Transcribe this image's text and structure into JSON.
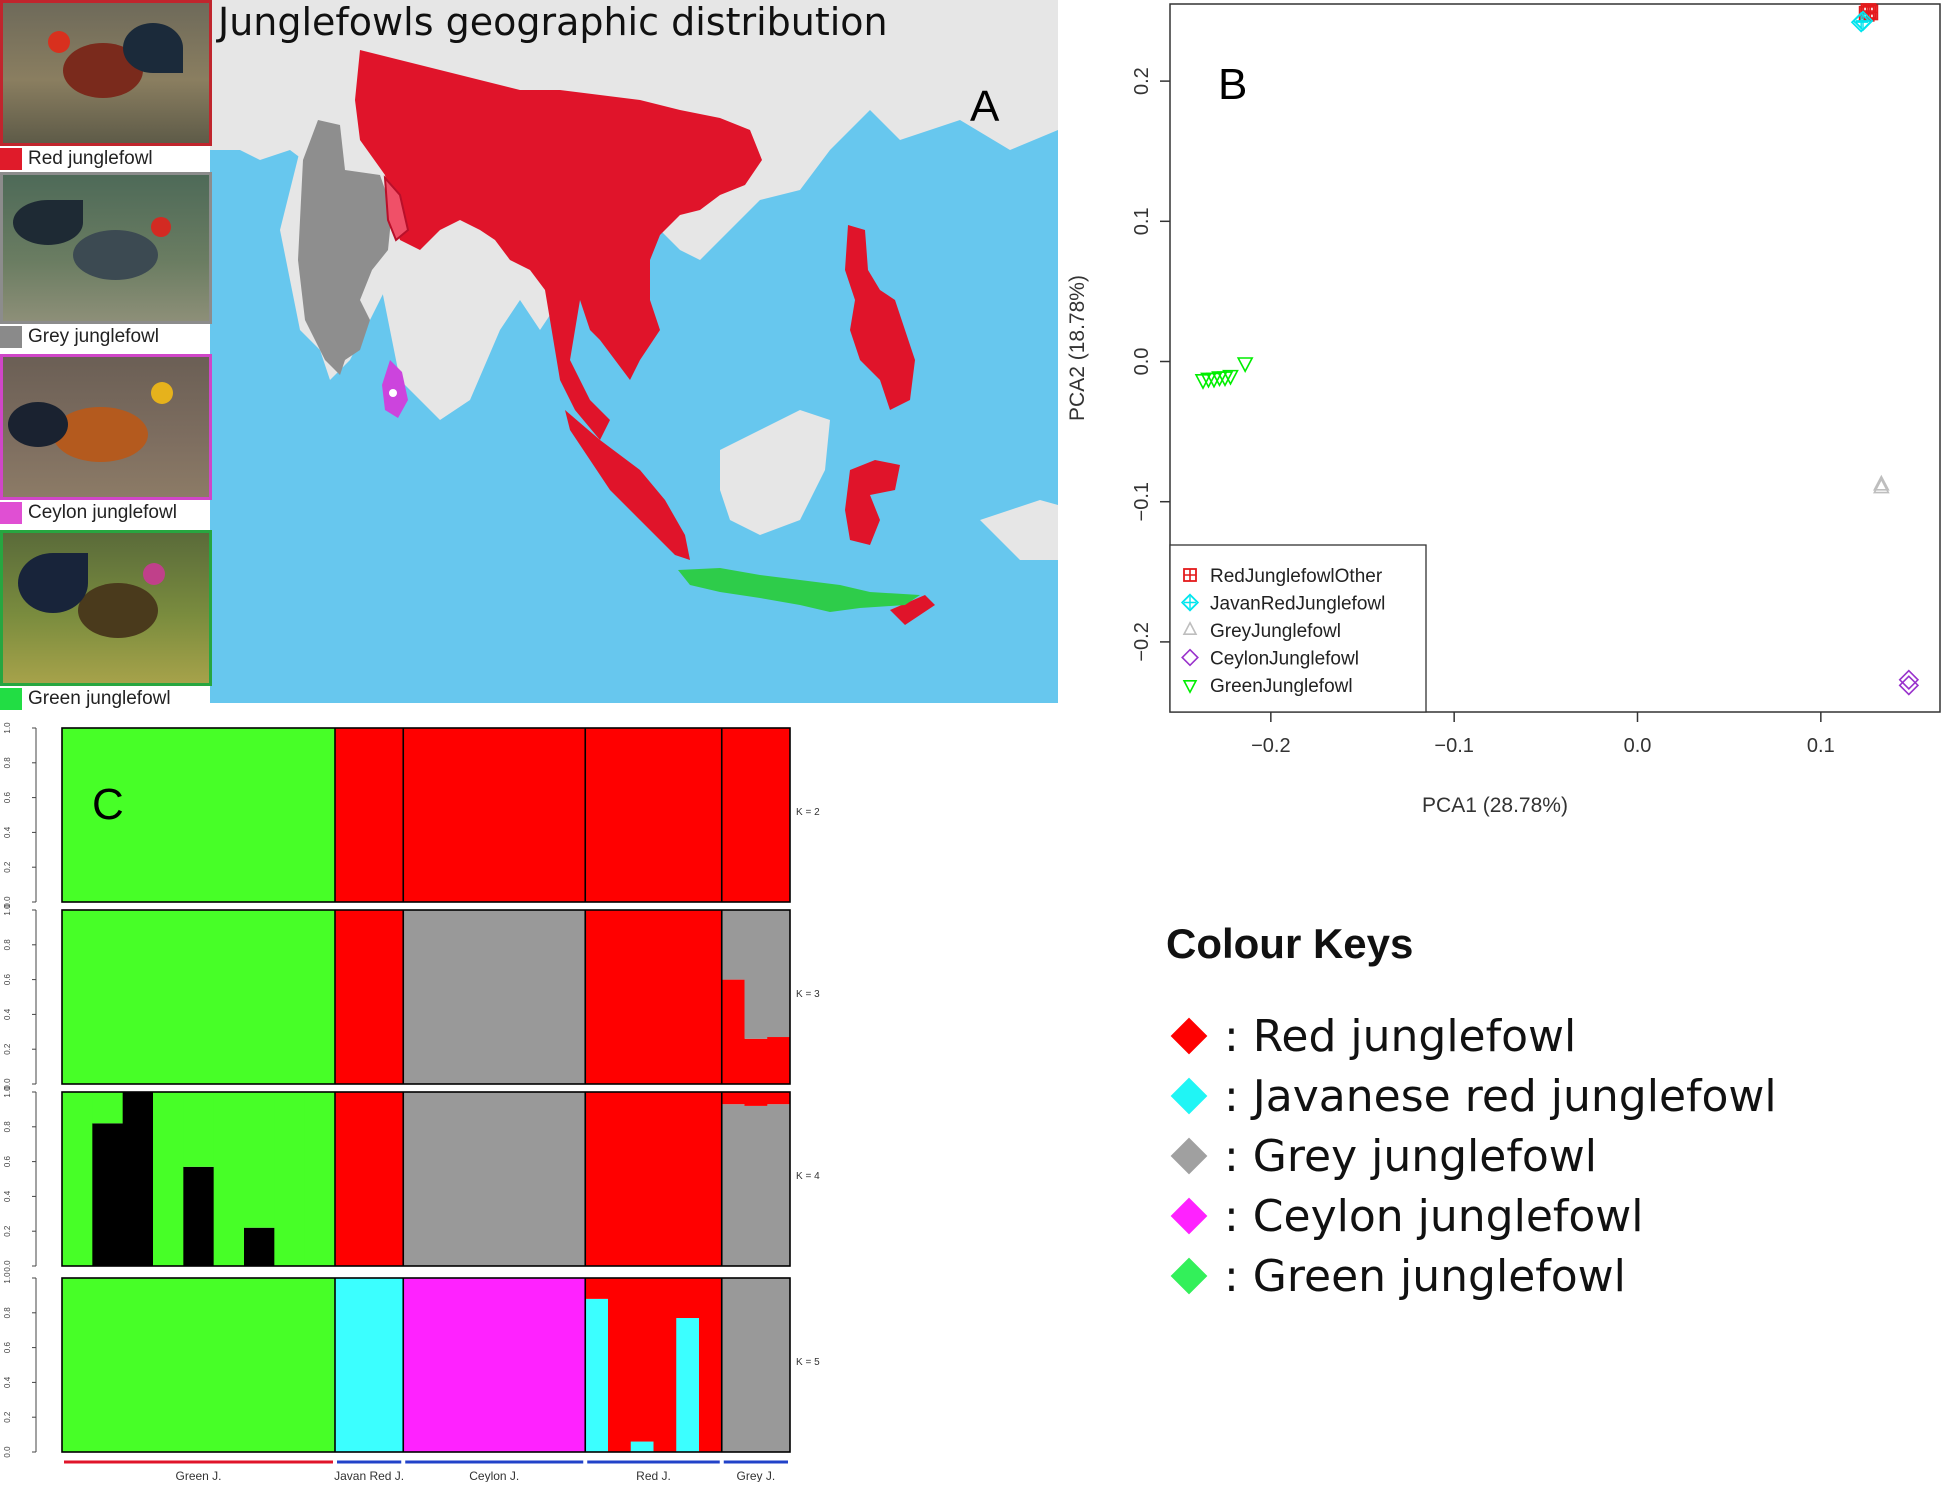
{
  "panel_a": {
    "letter": "A",
    "title": "Junglefowls geographic distribution",
    "birds": [
      {
        "label": "Red junglefowl",
        "color": "#e01b2a",
        "frame": "#c0252d"
      },
      {
        "label": "Grey junglefowl",
        "color": "#8a8a8a",
        "frame": "#8c8c8c"
      },
      {
        "label": "Ceylon junglefowl",
        "color": "#e04fd3",
        "frame": "#d046c8"
      },
      {
        "label": "Green junglefowl",
        "color": "#22dd44",
        "frame": "#27a640"
      }
    ],
    "map_colors": {
      "sea": "#67c7ee",
      "land": "#e8e8e8",
      "red": "#e0142a",
      "grey": "#8e8e8e",
      "ceylon": "#cc44dd",
      "green": "#2ecc4a"
    }
  },
  "panel_b": {
    "letter": "B"
  },
  "panel_c": {
    "letter": "C"
  },
  "chart_data": [
    {
      "type": "scatter",
      "panel": "B",
      "xlabel": "PCA1 (28.78%)",
      "ylabel": "PCA2 (18.78%)",
      "xlim": [
        -0.255,
        0.165
      ],
      "ylim": [
        -0.25,
        0.255
      ],
      "xticks": [
        -0.2,
        -0.1,
        0.0,
        0.1
      ],
      "xtick_labels": [
        "−0.2",
        "−0.1",
        "0.0",
        "0.1"
      ],
      "yticks": [
        -0.2,
        -0.1,
        0.0,
        0.1,
        0.2
      ],
      "ytick_labels": [
        "−0.2",
        "−0.1",
        "0.0",
        "0.1",
        "0.2"
      ],
      "legend_position": "bottom-left",
      "series": [
        {
          "name": "RedJunglefowlOther",
          "color": "#e41a1c",
          "marker": "square-plus",
          "points": [
            [
              0.126,
              0.25
            ],
            [
              0.127,
              0.249
            ],
            [
              0.125,
              0.248
            ]
          ]
        },
        {
          "name": "JavanRedJunglefowl",
          "color": "#00e5ee",
          "marker": "diamond-plus",
          "points": [
            [
              0.122,
              0.242
            ],
            [
              0.123,
              0.243
            ]
          ]
        },
        {
          "name": "GreyJunglefowl",
          "color": "#bebebe",
          "marker": "triangle-up",
          "points": [
            [
              0.133,
              -0.088
            ],
            [
              0.133,
              -0.09
            ]
          ]
        },
        {
          "name": "CeylonJunglefowl",
          "color": "#9932cc",
          "marker": "diamond",
          "points": [
            [
              0.148,
              -0.227
            ],
            [
              0.148,
              -0.231
            ]
          ]
        },
        {
          "name": "GreenJunglefowl",
          "color": "#00ee00",
          "marker": "triangle-down",
          "points": [
            [
              -0.237,
              -0.013
            ],
            [
              -0.234,
              -0.012
            ],
            [
              -0.231,
              -0.012
            ],
            [
              -0.228,
              -0.011
            ],
            [
              -0.225,
              -0.011
            ],
            [
              -0.222,
              -0.01
            ],
            [
              -0.214,
              -0.001
            ]
          ]
        }
      ]
    },
    {
      "type": "bar",
      "subtype": "stacked-admixture",
      "panel": "C",
      "k_labels": [
        "K = 2",
        "K = 3",
        "K = 4",
        "K = 5"
      ],
      "yticks": [
        "0.0",
        "0.2",
        "0.4",
        "0.6",
        "0.8",
        "1.0"
      ],
      "populations": [
        {
          "name": "Green J.",
          "n": 6,
          "underline": "#e0142a"
        },
        {
          "name": "Javan Red J.",
          "n": 1,
          "underline": "#2142c9"
        },
        {
          "name": "Ceylon J.",
          "n": 2,
          "underline": "#2142c9"
        },
        {
          "name": "Red J.",
          "n": 2,
          "underline": "#2142c9"
        },
        {
          "name": "Grey J.",
          "n": 1,
          "underline": "#2142c9"
        }
      ],
      "cluster_colors": {
        "green": "#47ff27",
        "red": "#ff0000",
        "grey": "#999999",
        "black": "#000000",
        "cyan": "#3bffff",
        "magenta": "#ff22ff"
      },
      "k_rows": [
        {
          "k": 2,
          "groups": [
            {
              "w": 6,
              "bars": [
                [
                  [
                    "green",
                    1.0
                  ]
                ]
              ]
            },
            {
              "w": 1.5,
              "bars": [
                [
                  [
                    "red",
                    1.0
                  ]
                ]
              ]
            },
            {
              "w": 4,
              "bars": [
                [
                  [
                    "red",
                    1.0
                  ]
                ]
              ]
            },
            {
              "w": 3,
              "bars": [
                [
                  [
                    "red",
                    1.0
                  ]
                ]
              ]
            },
            {
              "w": 1.5,
              "bars": [
                [
                  [
                    "red",
                    1.0
                  ]
                ]
              ]
            }
          ]
        },
        {
          "k": 3,
          "groups": [
            {
              "w": 6,
              "bars": [
                [
                  [
                    "green",
                    1.0
                  ]
                ]
              ]
            },
            {
              "w": 1.5,
              "bars": [
                [
                  [
                    "red",
                    1.0
                  ]
                ]
              ]
            },
            {
              "w": 4,
              "bars": [
                [
                  [
                    "grey",
                    1.0
                  ]
                ]
              ]
            },
            {
              "w": 3,
              "bars": [
                [
                  [
                    "red",
                    1.0
                  ]
                ]
              ]
            },
            {
              "w": 1.5,
              "bars": [
                [
                  [
                    "red",
                    0.6
                  ],
                  [
                    "grey",
                    0.4
                  ]
                ],
                [
                  [
                    "red",
                    0.26
                  ],
                  [
                    "grey",
                    0.74
                  ]
                ],
                [
                  [
                    "red",
                    0.27
                  ],
                  [
                    "grey",
                    0.73
                  ]
                ]
              ]
            }
          ]
        },
        {
          "k": 4,
          "groups": [
            {
              "w": 6,
              "bars": [
                [
                  [
                    "green",
                    1.0
                  ]
                ],
                [
                  [
                    "black",
                    0.82
                  ],
                  [
                    "green",
                    0.18
                  ]
                ],
                [
                  [
                    "black",
                    1.0
                  ]
                ],
                [
                  [
                    "green",
                    1.0
                  ]
                ],
                [
                  [
                    "black",
                    0.57
                  ],
                  [
                    "green",
                    0.43
                  ]
                ],
                [
                  [
                    "green",
                    1.0
                  ]
                ],
                [
                  [
                    "black",
                    0.22
                  ],
                  [
                    "green",
                    0.78
                  ]
                ],
                [
                  [
                    "green",
                    1.0
                  ]
                ],
                [
                  [
                    "green",
                    1.0
                  ]
                ]
              ]
            },
            {
              "w": 1.5,
              "bars": [
                [
                  [
                    "red",
                    1.0
                  ]
                ]
              ]
            },
            {
              "w": 4,
              "bars": [
                [
                  [
                    "grey",
                    1.0
                  ]
                ]
              ]
            },
            {
              "w": 3,
              "bars": [
                [
                  [
                    "red",
                    1.0
                  ]
                ]
              ]
            },
            {
              "w": 1.5,
              "bars": [
                [
                  [
                    "grey",
                    0.93
                  ],
                  [
                    "red",
                    0.07
                  ]
                ],
                [
                  [
                    "grey",
                    0.92
                  ],
                  [
                    "red",
                    0.08
                  ]
                ],
                [
                  [
                    "grey",
                    0.93
                  ],
                  [
                    "red",
                    0.07
                  ]
                ]
              ]
            }
          ]
        },
        {
          "k": 5,
          "groups": [
            {
              "w": 6,
              "bars": [
                [
                  [
                    "green",
                    1.0
                  ]
                ]
              ]
            },
            {
              "w": 1.5,
              "bars": [
                [
                  [
                    "cyan",
                    1.0
                  ]
                ]
              ]
            },
            {
              "w": 4,
              "bars": [
                [
                  [
                    "magenta",
                    1.0
                  ]
                ]
              ]
            },
            {
              "w": 3,
              "bars": [
                [
                  [
                    "cyan",
                    0.88
                  ],
                  [
                    "red",
                    0.12
                  ]
                ],
                [
                  [
                    "red",
                    1.0
                  ]
                ],
                [
                  [
                    "cyan",
                    0.06
                  ],
                  [
                    "red",
                    0.94
                  ]
                ],
                [
                  [
                    "red",
                    1.0
                  ]
                ],
                [
                  [
                    "cyan",
                    0.77
                  ],
                  [
                    "red",
                    0.23
                  ]
                ],
                [
                  [
                    "red",
                    1.0
                  ]
                ]
              ]
            },
            {
              "w": 1.5,
              "bars": [
                [
                  [
                    "grey",
                    1.0
                  ]
                ]
              ]
            }
          ]
        }
      ]
    }
  ],
  "colour_keys": {
    "title": "Colour Keys",
    "items": [
      {
        "label": ": Red junglefowl",
        "color": "#ff0000"
      },
      {
        "label": ": Javanese red junglefowl",
        "color": "#20f5f5"
      },
      {
        "label": ": Grey junglefowl",
        "color": "#a0a0a0"
      },
      {
        "label": ": Ceylon junglefowl",
        "color": "#ff22ff"
      },
      {
        "label": ": Green junglefowl",
        "color": "#33f05a"
      }
    ]
  }
}
